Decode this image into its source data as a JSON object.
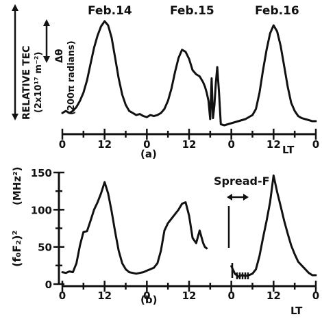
{
  "chart_data": [
    {
      "type": "line",
      "panel_label": "(a)",
      "days": [
        "Feb.14",
        "Feb.15",
        "Feb.16"
      ],
      "ylabel_1": "RELATIVE TEC",
      "ylabel_2": "(2x10¹⁷ m⁻²)",
      "ylabel_3": "Δθ",
      "ylabel_4": "(200π radians)",
      "xlabel": "LT",
      "x_tick_labels": [
        "0",
        "12",
        "0",
        "12",
        "0",
        "12",
        "0"
      ],
      "x_tick_hours": [
        0,
        12,
        24,
        36,
        48,
        60,
        72
      ],
      "xlim": [
        0,
        72
      ],
      "ylim": [
        0,
        1
      ],
      "series": [
        {
          "x": [
            0,
            1,
            2,
            3,
            4,
            5,
            6,
            7,
            8,
            9,
            10,
            11,
            12,
            13,
            14,
            15,
            16,
            17,
            18,
            19,
            20,
            21,
            22,
            23,
            24,
            25,
            26,
            27,
            28,
            29,
            30,
            31,
            32,
            33,
            34,
            35,
            36,
            37,
            38,
            39,
            40,
            40.5,
            41,
            41.5,
            42,
            42.4,
            42.8,
            43.2,
            43.6,
            44,
            44.5,
            45,
            46,
            48,
            50,
            52,
            54,
            55,
            56,
            57,
            58,
            59,
            60,
            61,
            62,
            63,
            64,
            65,
            66,
            67,
            68,
            69,
            70,
            71,
            72
          ],
          "y": [
            0.1,
            0.12,
            0.1,
            0.12,
            0.16,
            0.22,
            0.3,
            0.42,
            0.58,
            0.74,
            0.86,
            0.95,
            1.0,
            0.96,
            0.84,
            0.64,
            0.44,
            0.28,
            0.18,
            0.12,
            0.1,
            0.08,
            0.09,
            0.07,
            0.06,
            0.08,
            0.07,
            0.08,
            0.1,
            0.14,
            0.22,
            0.34,
            0.5,
            0.64,
            0.72,
            0.7,
            0.63,
            0.52,
            0.48,
            0.46,
            0.4,
            0.36,
            0.3,
            0.22,
            0.04,
            0.44,
            0.05,
            0.18,
            0.4,
            0.55,
            0.3,
            -0.01,
            -0.02,
            0.0,
            0.02,
            0.04,
            0.08,
            0.14,
            0.3,
            0.52,
            0.72,
            0.88,
            0.96,
            0.9,
            0.76,
            0.56,
            0.36,
            0.2,
            0.12,
            0.07,
            0.05,
            0.04,
            0.03,
            0.02,
            0.02
          ]
        }
      ]
    },
    {
      "type": "line",
      "panel_label": "(b)",
      "ylabel_1": "(f₀F₂)²",
      "ylabel_2": "(MHz²)",
      "xlabel": "LT",
      "annotation": "Spread-F",
      "x_tick_labels": [
        "0",
        "12",
        "0",
        "12",
        "0",
        "12",
        "0"
      ],
      "x_tick_hours": [
        0,
        12,
        24,
        36,
        48,
        60,
        72
      ],
      "y_ticks": [
        0,
        50,
        100,
        150
      ],
      "xlim": [
        0,
        72
      ],
      "ylim": [
        0,
        150
      ],
      "series": [
        {
          "x": [
            0,
            1,
            2,
            3,
            4,
            5,
            6,
            7,
            8,
            9,
            10,
            11,
            12,
            13,
            14,
            15,
            16,
            17,
            18,
            19,
            20,
            21,
            22,
            23,
            24,
            25,
            26,
            27,
            28,
            29,
            30,
            31,
            32,
            33,
            34,
            35,
            36,
            37,
            38,
            39,
            40,
            40.5,
            41
          ],
          "y": [
            16,
            15,
            17,
            16,
            28,
            52,
            70,
            71,
            85,
            100,
            110,
            122,
            137,
            122,
            98,
            70,
            45,
            28,
            20,
            16,
            15,
            14,
            15,
            16,
            18,
            20,
            22,
            28,
            45,
            72,
            82,
            88,
            94,
            100,
            108,
            110,
            92,
            62,
            55,
            72,
            55,
            50,
            48
          ]
        },
        {
          "x": [
            48,
            49,
            50,
            51,
            52,
            53,
            54,
            55,
            56,
            57,
            58,
            59,
            60,
            61,
            62,
            63,
            64,
            65,
            66,
            67,
            68,
            69,
            70,
            71,
            72
          ],
          "y": [
            24,
            14,
            10,
            12,
            11,
            12,
            14,
            20,
            38,
            62,
            85,
            110,
            146,
            124,
            105,
            85,
            68,
            52,
            40,
            30,
            25,
            20,
            15,
            12,
            12
          ]
        }
      ]
    }
  ]
}
